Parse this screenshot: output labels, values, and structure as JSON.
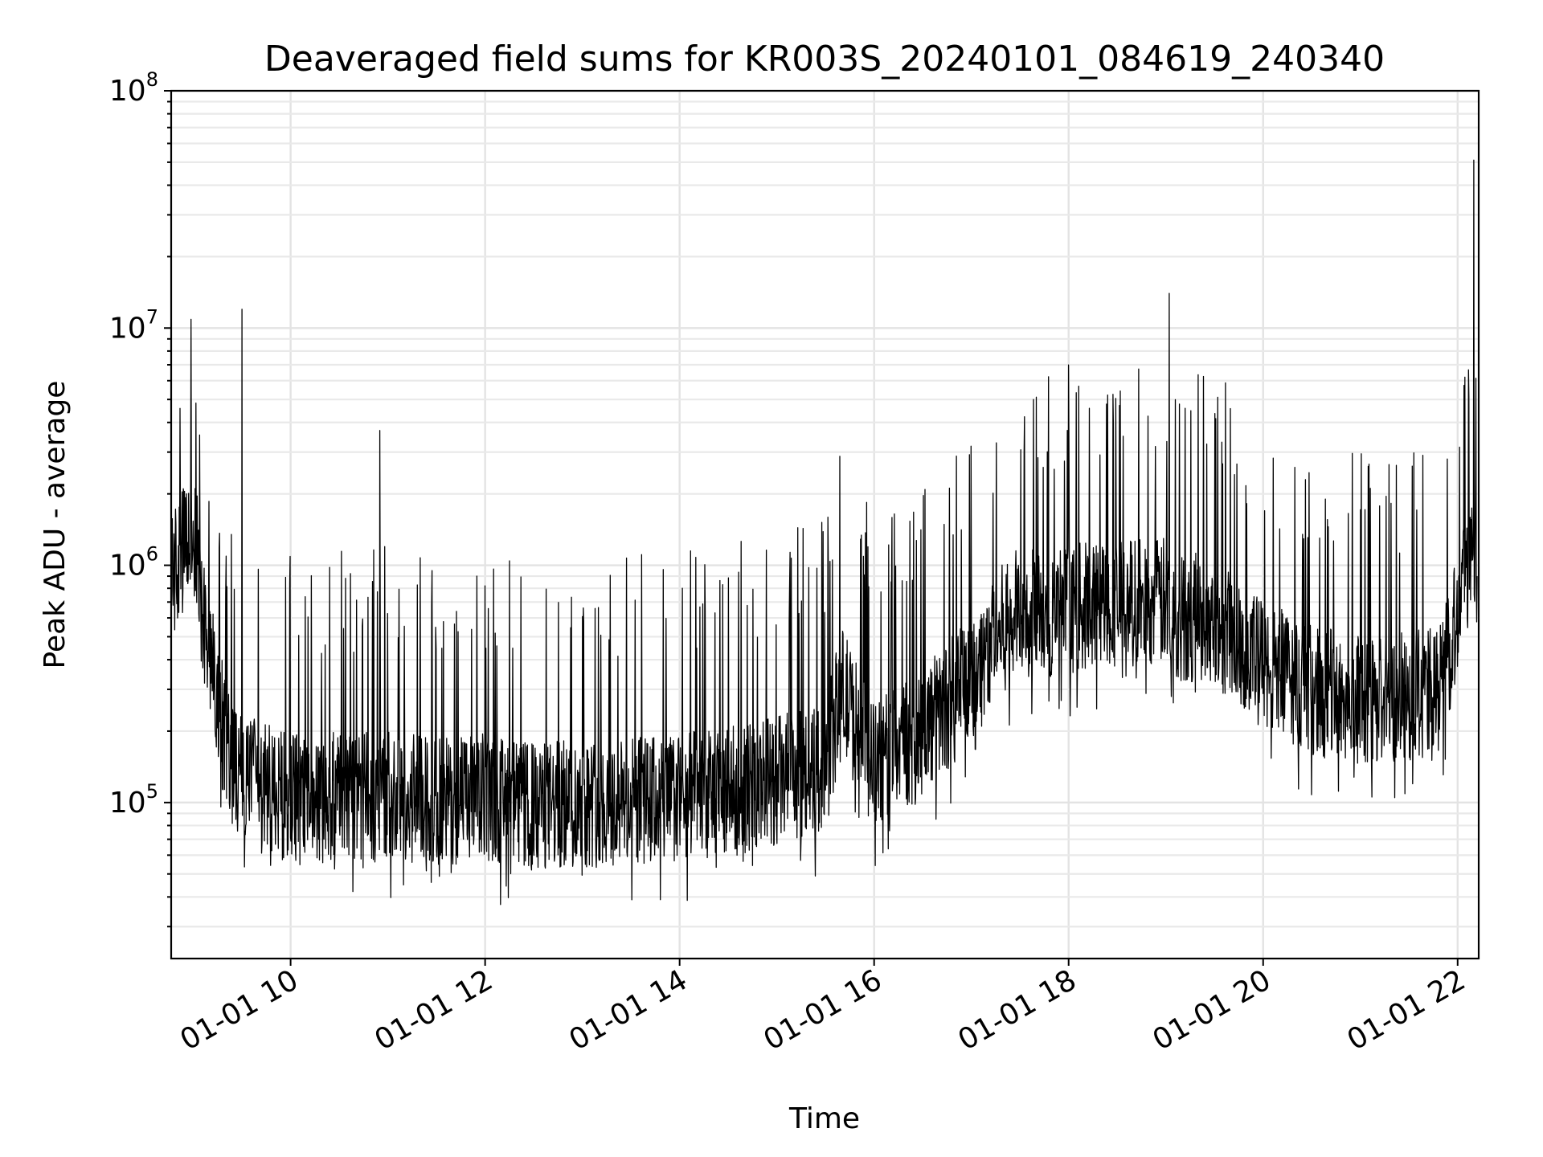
{
  "chart_data": {
    "type": "line",
    "title": "Deaveraged field sums for KR003S_20240101_084619_240340",
    "xlabel": "Time",
    "ylabel": "Peak ADU - average",
    "yscale": "log",
    "grid": true,
    "xlim": [
      "2024-01-01T08:46:19",
      "2024-01-01T22:13:00"
    ],
    "ylim": [
      22000,
      100000000
    ],
    "x_ticks": [
      "01-01 10",
      "01-01 12",
      "01-01 14",
      "01-01 16",
      "01-01 18",
      "01-01 20",
      "01-01 22"
    ],
    "y_ticks": [
      {
        "base": "10",
        "exp": "5",
        "value": 100000
      },
      {
        "base": "10",
        "exp": "6",
        "value": 1000000
      },
      {
        "base": "10",
        "exp": "7",
        "value": 10000000
      },
      {
        "base": "10",
        "exp": "8",
        "value": 100000000
      }
    ],
    "series": [
      {
        "color": "#000000",
        "x": [
          "08:47",
          "09:00",
          "09:10",
          "09:20",
          "09:28",
          "09:30",
          "09:40",
          "09:50",
          "10:00",
          "10:30",
          "10:55",
          "11:00",
          "11:30",
          "12:00",
          "12:30",
          "13:00",
          "13:30",
          "14:00",
          "14:30",
          "15:00",
          "15:30",
          "15:40",
          "16:00",
          "16:30",
          "17:00",
          "17:15",
          "17:30",
          "17:45",
          "18:00",
          "18:30",
          "19:00",
          "19:02",
          "19:30",
          "20:00",
          "20:30",
          "21:00",
          "21:30",
          "21:50",
          "22:05",
          "22:10",
          "22:12"
        ],
        "y": [
          900000,
          1400000,
          400000,
          180000,
          130000,
          12000000,
          120000,
          110000,
          105000,
          105000,
          3700000,
          110000,
          100000,
          105000,
          95000,
          100000,
          100000,
          105000,
          110000,
          125000,
          140000,
          300000,
          140000,
          200000,
          330000,
          500000,
          650000,
          600000,
          650000,
          700000,
          700000,
          14000000,
          600000,
          380000,
          300000,
          270000,
          280000,
          300000,
          1000000,
          51000000,
          1200000
        ]
      }
    ],
    "annotations": []
  }
}
